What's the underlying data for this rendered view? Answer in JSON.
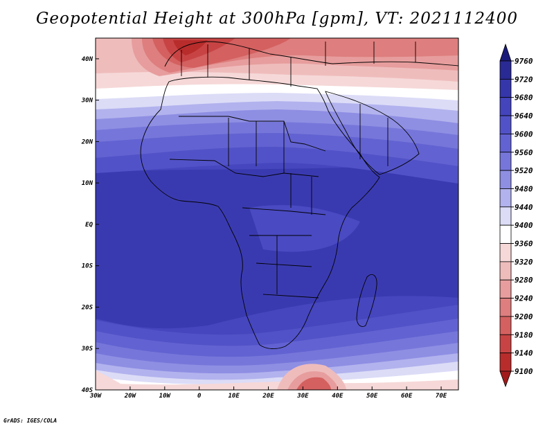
{
  "title": "Geopotential Height at 300hPa [gpm], VT: 2021112400",
  "credit": "GrADS: IGES/COLA",
  "map": {
    "lon_range": [
      -30,
      75
    ],
    "lat_range": [
      -40,
      45
    ],
    "lon_ticks": [
      {
        "lon": -30,
        "label": "30W"
      },
      {
        "lon": -20,
        "label": "20W"
      },
      {
        "lon": -10,
        "label": "10W"
      },
      {
        "lon": 0,
        "label": "0"
      },
      {
        "lon": 10,
        "label": "10E"
      },
      {
        "lon": 20,
        "label": "20E"
      },
      {
        "lon": 30,
        "label": "30E"
      },
      {
        "lon": 40,
        "label": "40E"
      },
      {
        "lon": 50,
        "label": "50E"
      },
      {
        "lon": 60,
        "label": "60E"
      },
      {
        "lon": 70,
        "label": "70E"
      }
    ],
    "lat_ticks": [
      {
        "lat": 40,
        "label": "40N"
      },
      {
        "lat": 30,
        "label": "30N"
      },
      {
        "lat": 20,
        "label": "20N"
      },
      {
        "lat": 10,
        "label": "10N"
      },
      {
        "lat": 0,
        "label": "EQ"
      },
      {
        "lat": -10,
        "label": "10S"
      },
      {
        "lat": -20,
        "label": "20S"
      },
      {
        "lat": -30,
        "label": "30S"
      },
      {
        "lat": -40,
        "label": "40S"
      }
    ]
  },
  "colorbar": {
    "levels": [
      "9760",
      "9720",
      "9680",
      "9640",
      "9600",
      "9560",
      "9520",
      "9480",
      "9440",
      "9400",
      "9360",
      "9320",
      "9280",
      "9240",
      "9200",
      "9180",
      "9140",
      "9100"
    ],
    "colors": [
      "#1a1a7a",
      "#2a2a94",
      "#3636ab",
      "#4444bd",
      "#5252c8",
      "#6262d2",
      "#7676da",
      "#8e8ee3",
      "#b2b2ee",
      "#dcdcf7",
      "#ffffff",
      "#f6d8d8",
      "#efbcbc",
      "#e79d9d",
      "#de7e7e",
      "#d46060",
      "#c84444",
      "#b82c2c",
      "#a11c1c"
    ]
  }
}
